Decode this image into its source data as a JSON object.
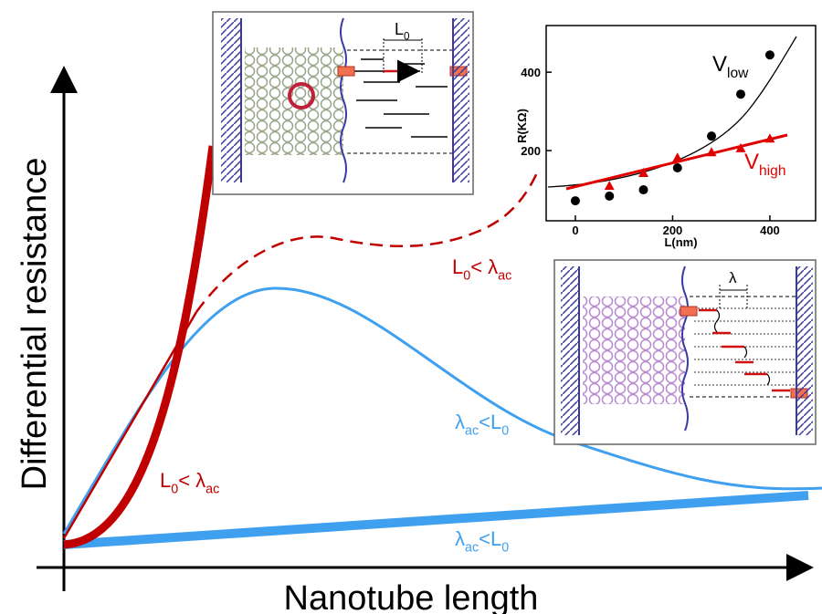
{
  "diagram": {
    "y_axis_label": "Differential resistance",
    "x_axis_label": "Nanotube length",
    "labels": [
      {
        "segments": [
          "L",
          "0",
          "< λ",
          "ac"
        ],
        "color": "#c00000"
      },
      {
        "segments": [
          "λ",
          "ac",
          "<L",
          "0"
        ],
        "color": "#3ea0ef"
      },
      {
        "segments": [
          "L",
          "0",
          "< λ",
          "ac"
        ],
        "color": "#c00000"
      },
      {
        "segments": [
          "λ",
          "ac",
          "<L",
          "0"
        ],
        "color": "#3ea0ef"
      }
    ],
    "inset_top_label": {
      "segments": [
        "L",
        "0"
      ]
    },
    "inset_bottom_label": "λ"
  },
  "chart_data": {
    "type": "scatter",
    "xlabel": "L(nm)",
    "ylabel": "R(KΩ)",
    "xlim": [
      -60,
      494
    ],
    "ylim": [
      21,
      519
    ],
    "xticks": [
      0,
      200,
      400
    ],
    "yticks": [
      200,
      400
    ],
    "series": [
      {
        "name": {
          "segments": [
            "V",
            "low"
          ]
        },
        "color": "#000000",
        "marker": "circle",
        "x": [
          0,
          70,
          140,
          210,
          280,
          340,
          400
        ],
        "values": [
          72,
          84,
          100,
          156,
          237,
          344,
          444
        ]
      },
      {
        "name": {
          "segments": [
            "V",
            "high"
          ]
        },
        "color": "#e00000",
        "marker": "triangle",
        "x": [
          70,
          140,
          210,
          280,
          340,
          400
        ],
        "values": [
          109,
          142,
          181,
          195,
          205,
          230
        ]
      }
    ]
  }
}
